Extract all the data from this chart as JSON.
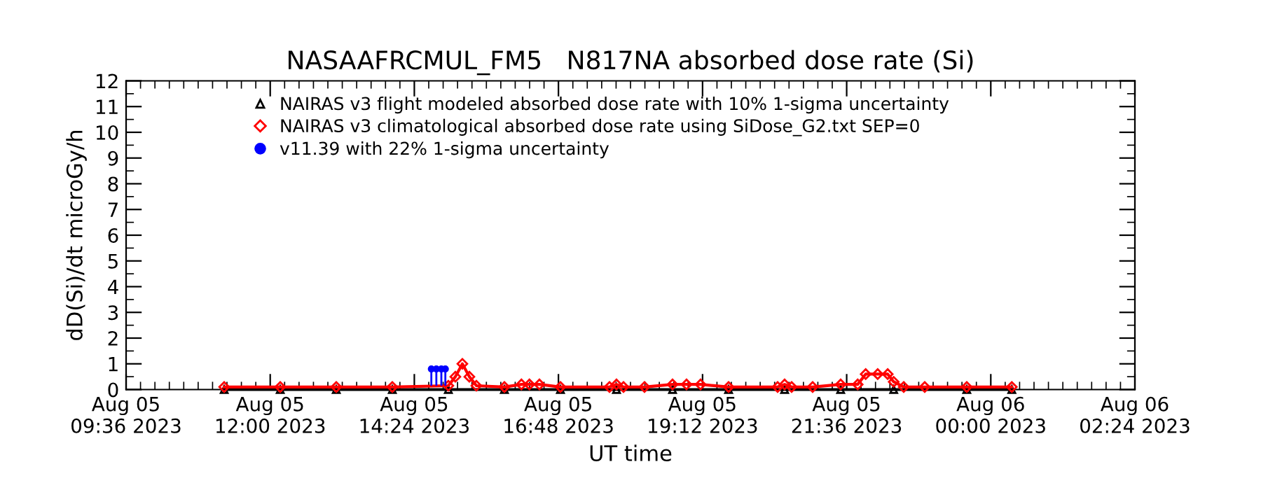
{
  "chart_data": {
    "type": "line",
    "title": "NASAAFRCMUL_FM5   N817NA absorbed dose rate (Si)",
    "xlabel": "UT time",
    "ylabel": "dD(Si)/dt microGy/h",
    "xlim": [
      "2023-08-05T09:36",
      "2023-08-06T02:24"
    ],
    "xticks": [
      {
        "value": "2023-08-05T09:36",
        "label": "Aug 05\n09:36 2023"
      },
      {
        "value": "2023-08-05T12:00",
        "label": "Aug 05\n12:00 2023"
      },
      {
        "value": "2023-08-05T14:24",
        "label": "Aug 05\n14:24 2023"
      },
      {
        "value": "2023-08-05T16:48",
        "label": "Aug 05\n16:48 2023"
      },
      {
        "value": "2023-08-05T19:12",
        "label": "Aug 05\n19:12 2023"
      },
      {
        "value": "2023-08-05T21:36",
        "label": "Aug 05\n21:36 2023"
      },
      {
        "value": "2023-08-06T00:00",
        "label": "Aug 06\n00:00 2023"
      },
      {
        "value": "2023-08-06T02:24",
        "label": "Aug 06\n02:24 2023"
      }
    ],
    "ylim": [
      0,
      12
    ],
    "yticks": [
      0,
      1,
      2,
      3,
      4,
      5,
      6,
      7,
      8,
      9,
      10,
      11,
      12
    ],
    "legend": "top left",
    "series": [
      {
        "name": "NAIRAS v3 flight modeled absorbed dose rate with 10% 1-sigma uncertainty",
        "color": "#000000",
        "marker": "triangle",
        "x": [
          "2023-08-05T11:14",
          "2023-08-05T12:10",
          "2023-08-05T13:06",
          "2023-08-05T14:02",
          "2023-08-05T14:58",
          "2023-08-05T15:54",
          "2023-08-05T16:50",
          "2023-08-05T17:46",
          "2023-08-05T18:42",
          "2023-08-05T19:38",
          "2023-08-05T20:34",
          "2023-08-05T21:30",
          "2023-08-05T22:23",
          "2023-08-05T23:36",
          "2023-08-06T00:21"
        ],
        "values": [
          0,
          0,
          0,
          0,
          0,
          0,
          0,
          0,
          0,
          0,
          0,
          0,
          0,
          0,
          0
        ]
      },
      {
        "name": "NAIRAS v3 climatological absorbed dose rate using SiDose_G2.txt SEP=0",
        "color": "#ff0000",
        "marker": "diamond",
        "x": [
          "2023-08-05T11:14",
          "2023-08-05T12:10",
          "2023-08-05T13:06",
          "2023-08-05T14:02",
          "2023-08-05T14:58",
          "2023-08-05T15:05",
          "2023-08-05T15:12",
          "2023-08-05T15:19",
          "2023-08-05T15:26",
          "2023-08-05T15:54",
          "2023-08-05T16:11",
          "2023-08-05T16:19",
          "2023-08-05T16:29",
          "2023-08-05T16:50",
          "2023-08-05T17:39",
          "2023-08-05T17:46",
          "2023-08-05T17:53",
          "2023-08-05T18:14",
          "2023-08-05T18:42",
          "2023-08-05T18:56",
          "2023-08-05T19:10",
          "2023-08-05T19:38",
          "2023-08-05T20:27",
          "2023-08-05T20:34",
          "2023-08-05T20:41",
          "2023-08-05T21:02",
          "2023-08-05T21:30",
          "2023-08-05T21:47",
          "2023-08-05T21:55",
          "2023-08-05T22:07",
          "2023-08-05T22:17",
          "2023-08-05T22:23",
          "2023-08-05T22:33",
          "2023-08-05T22:54",
          "2023-08-05T23:36",
          "2023-08-06T00:21"
        ],
        "values": [
          0.1,
          0.1,
          0.1,
          0.1,
          0.15,
          0.5,
          1.0,
          0.5,
          0.15,
          0.1,
          0.2,
          0.2,
          0.2,
          0.1,
          0.1,
          0.2,
          0.1,
          0.1,
          0.2,
          0.2,
          0.2,
          0.1,
          0.1,
          0.2,
          0.1,
          0.1,
          0.2,
          0.2,
          0.6,
          0.6,
          0.6,
          0.3,
          0.1,
          0.1,
          0.1,
          0.1
        ]
      },
      {
        "name": "v11.39 with 22% 1-sigma uncertainty",
        "color": "#0000ff",
        "type": "scatter",
        "marker": "circle",
        "x": [
          "2023-08-05T14:41",
          "2023-08-05T14:46",
          "2023-08-05T14:51",
          "2023-08-05T14:55"
        ],
        "values": [
          0.8,
          0.8,
          0.8,
          0.8
        ],
        "errors": [
          [
            0.15,
            0.8
          ],
          [
            0.15,
            0.8
          ],
          [
            0.15,
            0.8
          ],
          [
            0.15,
            0.8
          ]
        ]
      }
    ]
  }
}
